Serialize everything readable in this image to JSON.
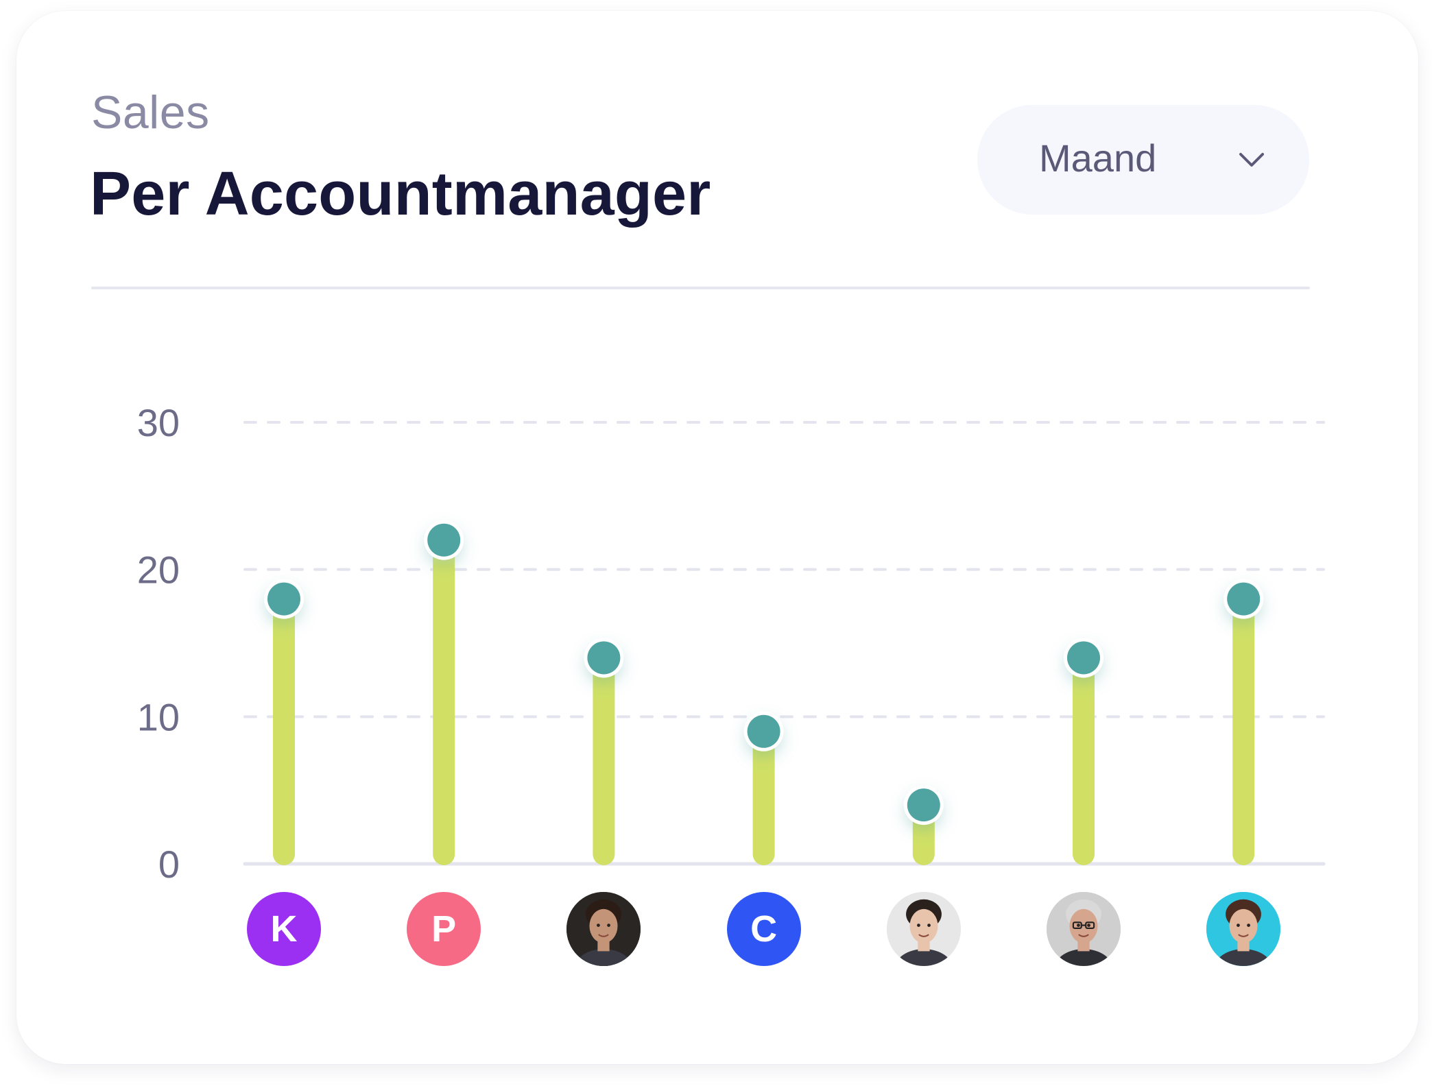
{
  "header": {
    "eyebrow": "Sales",
    "title": "Per Accountmanager"
  },
  "period_select": {
    "value": "Maand",
    "icon": "chevron-down-icon"
  },
  "colors": {
    "bar": "#d1e065",
    "marker": "#4fa3a1",
    "grid": "#e4e4ee",
    "axis": "#e4e4ee"
  },
  "chart_data": {
    "type": "bar",
    "title": "Per Accountmanager",
    "xlabel": "",
    "ylabel": "",
    "ylim": [
      0,
      30
    ],
    "yticks": [
      0,
      10,
      20,
      30
    ],
    "grid": true,
    "categories": [
      "K",
      "P",
      "photo-man-1",
      "C",
      "photo-woman-1",
      "photo-man-2",
      "photo-woman-2"
    ],
    "values": [
      18,
      22,
      14,
      9,
      4,
      14,
      18
    ]
  },
  "avatars": [
    {
      "type": "initial",
      "letter": "K",
      "color": "#9b2ff2"
    },
    {
      "type": "initial",
      "letter": "P",
      "color": "#f76a86"
    },
    {
      "type": "photo",
      "icon": "man-portrait-icon",
      "bg": "#2a2624",
      "skin": "#c49478",
      "hair": "#2b1d16"
    },
    {
      "type": "initial",
      "letter": "C",
      "color": "#2f56f5"
    },
    {
      "type": "photo",
      "icon": "woman-portrait-icon",
      "bg": "#e7e7e7",
      "skin": "#e9c4ad",
      "hair": "#2a211d"
    },
    {
      "type": "photo",
      "icon": "older-man-portrait-icon",
      "bg": "#cfcfcf",
      "skin": "#d6a58d",
      "hair": "#d9d9d9"
    },
    {
      "type": "photo",
      "icon": "woman-portrait-icon",
      "bg": "#2ec6e0",
      "skin": "#e2b69b",
      "hair": "#4a2c20"
    }
  ]
}
